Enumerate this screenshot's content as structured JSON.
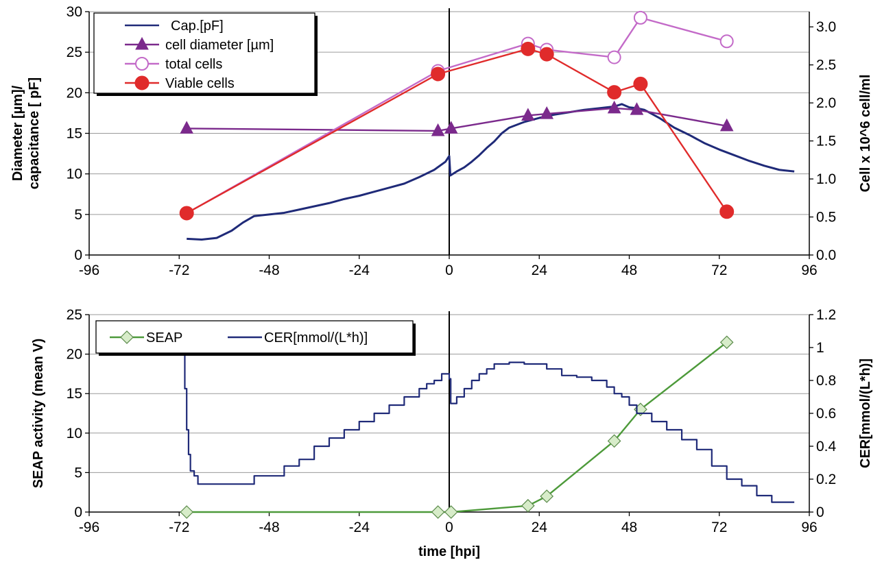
{
  "chart_data": [
    {
      "type": "line",
      "x_ticks": [
        -96,
        -72,
        -48,
        -24,
        0,
        24,
        48,
        72,
        96
      ],
      "xlim": [
        -96,
        96
      ],
      "ylim_left": [
        0,
        30
      ],
      "y_left_ticks": [
        0,
        5,
        10,
        15,
        20,
        25,
        30
      ],
      "ylim_right": [
        0,
        3.2
      ],
      "y_right_ticks": [
        "0.0",
        "0.5",
        "1.0",
        "1.5",
        "2.0",
        "2.5",
        "3.0"
      ],
      "ylabel_left_line1": "Diameter [µm]/",
      "ylabel_left_line2": "capacitance [ pF]",
      "ylabel_right": "Cell  x 10^6 cell/ml",
      "grid": true,
      "legend_position": "top-left",
      "vertical_line_at_x": 0,
      "series": [
        {
          "name": "Cap.[pF]",
          "axis": "left",
          "color": "#1f2a78",
          "marker": "none",
          "x": [
            -70,
            -66,
            -62,
            -58,
            -55,
            -52,
            -48,
            -44,
            -40,
            -36,
            -32,
            -28,
            -24,
            -20,
            -16,
            -12,
            -8,
            -4,
            -1,
            0,
            0.3,
            2,
            4,
            6,
            8,
            10,
            12,
            14,
            16,
            20,
            24,
            28,
            32,
            36,
            40,
            44,
            46,
            48,
            50,
            52,
            54,
            56,
            58,
            60,
            64,
            68,
            72,
            76,
            80,
            84,
            88,
            92
          ],
          "y": [
            2.0,
            1.9,
            2.1,
            3.0,
            4.0,
            4.8,
            5.0,
            5.2,
            5.6,
            6.0,
            6.4,
            6.9,
            7.3,
            7.8,
            8.3,
            8.8,
            9.6,
            10.5,
            11.5,
            12.2,
            9.8,
            10.3,
            10.8,
            11.5,
            12.3,
            13.2,
            14.0,
            15.0,
            15.7,
            16.4,
            16.9,
            17.3,
            17.6,
            17.9,
            18.1,
            18.3,
            18.6,
            18.2,
            18.1,
            17.9,
            17.4,
            16.9,
            16.3,
            15.7,
            14.8,
            13.8,
            13.0,
            12.3,
            11.6,
            11.0,
            10.5,
            10.3
          ]
        },
        {
          "name": "cell diameter [µm]",
          "axis": "left",
          "color": "#7b2a8c",
          "marker": "triangle",
          "x": [
            -70,
            -3,
            0.5,
            21,
            26,
            44,
            50,
            74
          ],
          "y": [
            15.6,
            15.3,
            15.6,
            17.2,
            17.4,
            18.1,
            17.9,
            15.9
          ]
        },
        {
          "name": "total cells",
          "axis": "right",
          "color": "#c36ac8",
          "marker": "circle-open",
          "x": [
            -70,
            -3,
            21,
            26,
            44,
            51,
            74
          ],
          "y": [
            0.55,
            2.42,
            2.78,
            2.7,
            2.6,
            3.12,
            2.81
          ]
        },
        {
          "name": "Viable cells",
          "axis": "right",
          "color": "#e02b2b",
          "marker": "circle-filled",
          "x": [
            -70,
            -3,
            21,
            26,
            44,
            51,
            74
          ],
          "y": [
            0.55,
            2.38,
            2.71,
            2.64,
            2.14,
            2.25,
            0.57
          ]
        }
      ]
    },
    {
      "type": "line",
      "x_ticks": [
        -96,
        -72,
        -48,
        -24,
        0,
        24,
        48,
        72,
        96
      ],
      "xlim": [
        -96,
        96
      ],
      "ylim_left": [
        0,
        25
      ],
      "y_left_ticks": [
        0,
        5,
        10,
        15,
        20,
        25
      ],
      "ylim_right": [
        0,
        1.2
      ],
      "y_right_ticks": [
        "0",
        "0.2",
        "0.4",
        "0.6",
        "0.8",
        "1",
        "1.2"
      ],
      "ylabel_left": "SEAP activity (mean V)",
      "ylabel_right": "CER[mmol/(L*h)]",
      "xlabel": "time  [hpi]",
      "grid": true,
      "legend_position": "top-left",
      "vertical_line_at_x": 0,
      "series": [
        {
          "name": "SEAP",
          "axis": "left",
          "color": "#4d9a3a",
          "marker": "diamond-open",
          "x": [
            -70,
            -3,
            0.5,
            21,
            26,
            44,
            51,
            74
          ],
          "y": [
            0,
            0,
            0,
            0.8,
            2.0,
            9.0,
            13.0,
            21.5
          ]
        },
        {
          "name": "CER[mmol/(L*h)]",
          "axis": "right",
          "color": "#1f2a78",
          "marker": "step",
          "x": [
            -71,
            -70.5,
            -70,
            -69.5,
            -69,
            -68,
            -67,
            -60,
            -52,
            -44,
            -40,
            -36,
            -32,
            -28,
            -24,
            -20,
            -16,
            -12,
            -8,
            -6,
            -4,
            -2,
            0,
            0.4,
            2,
            4,
            6,
            8,
            10,
            12,
            16,
            20,
            26,
            30,
            34,
            38,
            42,
            44,
            46,
            48,
            50,
            54,
            58,
            62,
            66,
            70,
            74,
            78,
            82,
            86,
            90,
            92
          ],
          "y": [
            0.96,
            0.75,
            0.5,
            0.35,
            0.25,
            0.22,
            0.17,
            0.17,
            0.22,
            0.28,
            0.32,
            0.4,
            0.45,
            0.5,
            0.55,
            0.6,
            0.65,
            0.7,
            0.75,
            0.78,
            0.8,
            0.84,
            0.81,
            0.66,
            0.7,
            0.75,
            0.8,
            0.84,
            0.87,
            0.9,
            0.91,
            0.9,
            0.87,
            0.83,
            0.82,
            0.8,
            0.76,
            0.72,
            0.7,
            0.65,
            0.6,
            0.55,
            0.5,
            0.44,
            0.38,
            0.28,
            0.2,
            0.16,
            0.1,
            0.06,
            0.06,
            0.06
          ]
        }
      ]
    }
  ]
}
